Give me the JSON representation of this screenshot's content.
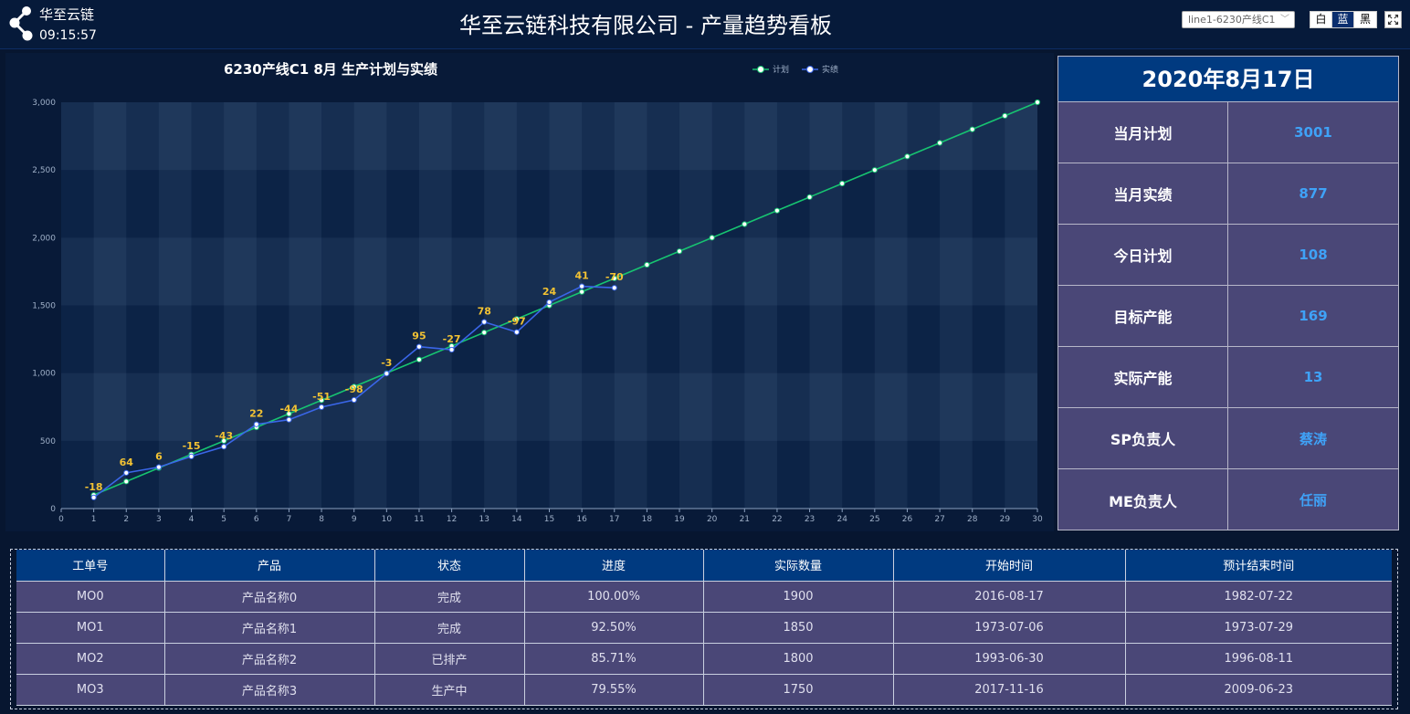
{
  "header": {
    "brand": "华至云链",
    "clock": "09:15:57",
    "title": "华至云链科技有限公司 - 产量趋势看板",
    "line_select": "line1-6230产线C1",
    "themes": [
      "白",
      "蓝",
      "黑"
    ],
    "active_theme": "蓝"
  },
  "chart_data": {
    "type": "line",
    "title": "6230产线C1 8月 生产计划与实绩",
    "x": [
      0,
      1,
      2,
      3,
      4,
      5,
      6,
      7,
      8,
      9,
      10,
      11,
      12,
      13,
      14,
      15,
      16,
      17,
      18,
      19,
      20,
      21,
      22,
      23,
      24,
      25,
      26,
      27,
      28,
      29,
      30
    ],
    "xlim": [
      0,
      30
    ],
    "ylim": [
      0,
      3000
    ],
    "yticks": [
      0,
      500,
      1000,
      1500,
      2000,
      2500,
      3000
    ],
    "ytick_labels": [
      "0",
      "500",
      "1,000",
      "1,500",
      "2,000",
      "2,500",
      "3,000"
    ],
    "grid": true,
    "legend_position": "top-right",
    "series": [
      {
        "name": "计划",
        "color": "#17c471",
        "x": [
          1,
          2,
          3,
          4,
          5,
          6,
          7,
          8,
          9,
          10,
          11,
          12,
          13,
          14,
          15,
          16,
          17,
          18,
          19,
          20,
          21,
          22,
          23,
          24,
          25,
          26,
          27,
          28,
          29,
          30
        ],
        "values": [
          100,
          200,
          300,
          400,
          500,
          600,
          700,
          800,
          900,
          1000,
          1100,
          1200,
          1300,
          1400,
          1500,
          1600,
          1700,
          1800,
          1900,
          2000,
          2100,
          2200,
          2300,
          2400,
          2500,
          2600,
          2700,
          2800,
          2900,
          3000
        ]
      },
      {
        "name": "实绩",
        "color": "#3a66e8",
        "x": [
          1,
          2,
          3,
          4,
          5,
          6,
          7,
          8,
          9,
          10,
          11,
          12,
          13,
          14,
          15,
          16,
          17
        ],
        "values": [
          82,
          264,
          306,
          385,
          457,
          622,
          656,
          749,
          802,
          997,
          1195,
          1173,
          1378,
          1303,
          1524,
          1641,
          1630
        ],
        "labels": [
          "-18",
          "64",
          "6",
          "-15",
          "-43",
          "22",
          "-44",
          "-51",
          "-98",
          "-3",
          "95",
          "-27",
          "78",
          "-97",
          "24",
          "41",
          "-70"
        ],
        "label_color": "#f2c233"
      }
    ]
  },
  "info": {
    "date": "2020年8月17日",
    "rows": [
      {
        "label": "当月计划",
        "value": "3001"
      },
      {
        "label": "当月实绩",
        "value": "877"
      },
      {
        "label": "今日计划",
        "value": "108"
      },
      {
        "label": "目标产能",
        "value": "169"
      },
      {
        "label": "实际产能",
        "value": "13"
      },
      {
        "label": "SP负责人",
        "value": "蔡涛"
      },
      {
        "label": "ME负责人",
        "value": "任丽"
      }
    ]
  },
  "table": {
    "columns": [
      "工单号",
      "产品",
      "状态",
      "进度",
      "实际数量",
      "开始时间",
      "预计结束时间"
    ],
    "rows": [
      [
        "MO0",
        "产品名称0",
        "完成",
        "100.00%",
        "1900",
        "2016-08-17",
        "1982-07-22"
      ],
      [
        "MO1",
        "产品名称1",
        "完成",
        "92.50%",
        "1850",
        "1973-07-06",
        "1973-07-29"
      ],
      [
        "MO2",
        "产品名称2",
        "已排产",
        "85.71%",
        "1800",
        "1993-06-30",
        "1996-08-11"
      ],
      [
        "MO3",
        "产品名称3",
        "生产中",
        "79.55%",
        "1750",
        "2017-11-16",
        "2009-06-23"
      ]
    ]
  },
  "colors": {
    "header_bg": "#061a3a",
    "panel_bg": "#4a4777",
    "accent_blue": "#003a80",
    "value_blue": "#3fa2f7"
  }
}
